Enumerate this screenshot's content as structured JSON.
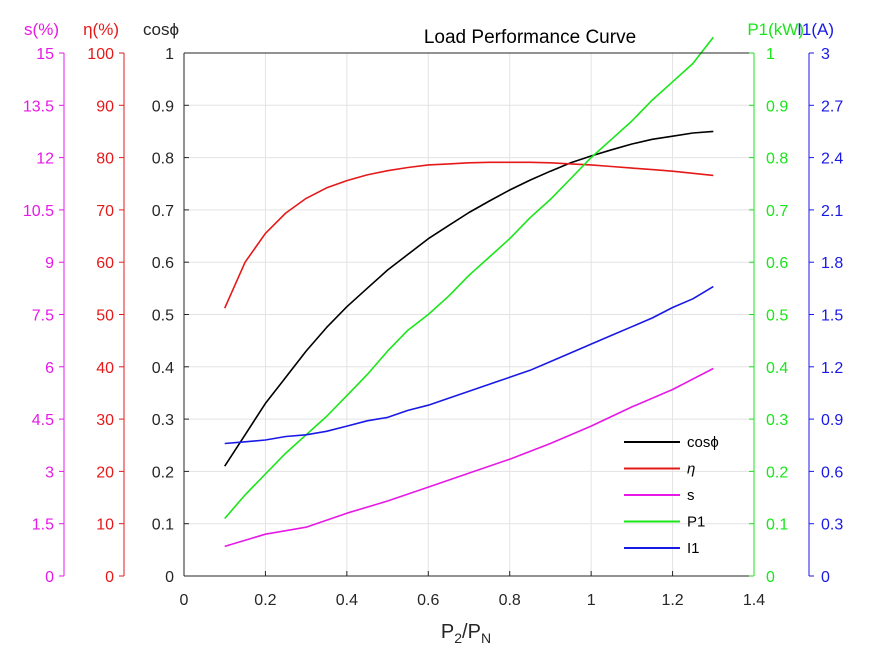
{
  "chart_data": {
    "type": "line",
    "title": "Load Performance Curve",
    "xlabel": "P2/PN",
    "xlim": [
      0,
      1.4
    ],
    "xticks": [
      "0",
      "0.2",
      "0.4",
      "0.6",
      "0.8",
      "1",
      "1.2",
      "1.4"
    ],
    "grid": true,
    "legend_position": "bottom-right",
    "axes": [
      {
        "id": "s",
        "label": "s(%)",
        "side": "left",
        "offset": 2,
        "range": [
          0,
          15
        ],
        "ticks": [
          "0",
          "1.5",
          "3",
          "4.5",
          "6",
          "7.5",
          "9",
          "10.5",
          "12",
          "13.5",
          "15"
        ],
        "color": "#e619e6"
      },
      {
        "id": "eta",
        "label": "η(%)",
        "side": "left",
        "offset": 1,
        "range": [
          0,
          100
        ],
        "ticks": [
          "0",
          "10",
          "20",
          "30",
          "40",
          "50",
          "60",
          "70",
          "80",
          "90",
          "100"
        ],
        "color": "#e61919"
      },
      {
        "id": "cos",
        "label": "cosϕ",
        "side": "left",
        "offset": 0,
        "range": [
          0,
          1
        ],
        "ticks": [
          "0",
          "0.1",
          "0.2",
          "0.3",
          "0.4",
          "0.5",
          "0.6",
          "0.7",
          "0.8",
          "0.9",
          "1"
        ],
        "color": "#262626"
      },
      {
        "id": "p1",
        "label": "P1(kW)",
        "side": "right",
        "offset": 0,
        "range": [
          0,
          1
        ],
        "ticks": [
          "0",
          "0.1",
          "0.2",
          "0.3",
          "0.4",
          "0.5",
          "0.6",
          "0.7",
          "0.8",
          "0.9",
          "1"
        ],
        "color": "#19e619"
      },
      {
        "id": "i1",
        "label": "I1(A)",
        "side": "right",
        "offset": 1,
        "range": [
          0,
          3
        ],
        "ticks": [
          "0",
          "0.3",
          "0.6",
          "0.9",
          "1.2",
          "1.5",
          "1.8",
          "2.1",
          "2.4",
          "2.7",
          "3"
        ],
        "color": "#1919e6"
      }
    ],
    "series": [
      {
        "name": "cosϕ",
        "axis": "cos",
        "color": "#000000",
        "x": [
          0.1,
          0.15,
          0.2,
          0.25,
          0.3,
          0.35,
          0.4,
          0.45,
          0.5,
          0.55,
          0.6,
          0.65,
          0.7,
          0.75,
          0.8,
          0.85,
          0.9,
          0.95,
          1.0,
          1.05,
          1.1,
          1.15,
          1.2,
          1.25,
          1.3
        ],
        "y": [
          0.21,
          0.27,
          0.33,
          0.38,
          0.43,
          0.475,
          0.515,
          0.55,
          0.585,
          0.615,
          0.645,
          0.67,
          0.695,
          0.717,
          0.738,
          0.757,
          0.774,
          0.79,
          0.803,
          0.815,
          0.826,
          0.835,
          0.841,
          0.847,
          0.85
        ]
      },
      {
        "name": "η",
        "axis": "eta",
        "color": "#e61919",
        "x": [
          0.1,
          0.15,
          0.2,
          0.25,
          0.3,
          0.35,
          0.4,
          0.45,
          0.5,
          0.55,
          0.6,
          0.65,
          0.7,
          0.75,
          0.8,
          0.85,
          0.9,
          0.95,
          1.0,
          1.05,
          1.1,
          1.15,
          1.2,
          1.25,
          1.3
        ],
        "y": [
          51.2,
          60.0,
          65.5,
          69.4,
          72.2,
          74.2,
          75.6,
          76.7,
          77.5,
          78.1,
          78.6,
          78.8,
          79.0,
          79.1,
          79.1,
          79.1,
          79.0,
          78.8,
          78.6,
          78.3,
          78.0,
          77.7,
          77.4,
          77.0,
          76.6
        ]
      },
      {
        "name": "s",
        "axis": "s",
        "color": "#e619e6",
        "x": [
          0.1,
          0.2,
          0.3,
          0.4,
          0.5,
          0.6,
          0.7,
          0.8,
          0.9,
          1.0,
          1.1,
          1.2,
          1.3
        ],
        "y": [
          0.85,
          1.2,
          1.4,
          1.8,
          2.15,
          2.55,
          2.95,
          3.35,
          3.8,
          4.3,
          4.85,
          5.35,
          5.95
        ]
      },
      {
        "name": "P1",
        "axis": "p1",
        "color": "#19e619",
        "x": [
          0.1,
          0.15,
          0.2,
          0.25,
          0.3,
          0.35,
          0.4,
          0.45,
          0.5,
          0.55,
          0.6,
          0.65,
          0.7,
          0.75,
          0.8,
          0.85,
          0.9,
          0.95,
          1.0,
          1.05,
          1.1,
          1.15,
          1.2,
          1.25,
          1.3
        ],
        "y": [
          0.11,
          0.155,
          0.195,
          0.235,
          0.27,
          0.305,
          0.345,
          0.385,
          0.43,
          0.47,
          0.5,
          0.535,
          0.575,
          0.61,
          0.645,
          0.685,
          0.72,
          0.76,
          0.8,
          0.835,
          0.87,
          0.91,
          0.945,
          0.98,
          1.03
        ]
      },
      {
        "name": "I1",
        "axis": "i1",
        "color": "#1919e6",
        "x": [
          0.1,
          0.15,
          0.2,
          0.25,
          0.3,
          0.35,
          0.4,
          0.45,
          0.5,
          0.55,
          0.6,
          0.65,
          0.7,
          0.75,
          0.8,
          0.85,
          0.9,
          0.95,
          1.0,
          1.05,
          1.1,
          1.15,
          1.2,
          1.25,
          1.3
        ],
        "y": [
          0.76,
          0.77,
          0.78,
          0.8,
          0.81,
          0.83,
          0.86,
          0.89,
          0.91,
          0.95,
          0.98,
          1.02,
          1.06,
          1.1,
          1.14,
          1.18,
          1.23,
          1.28,
          1.33,
          1.38,
          1.43,
          1.48,
          1.54,
          1.59,
          1.66
        ]
      }
    ]
  }
}
